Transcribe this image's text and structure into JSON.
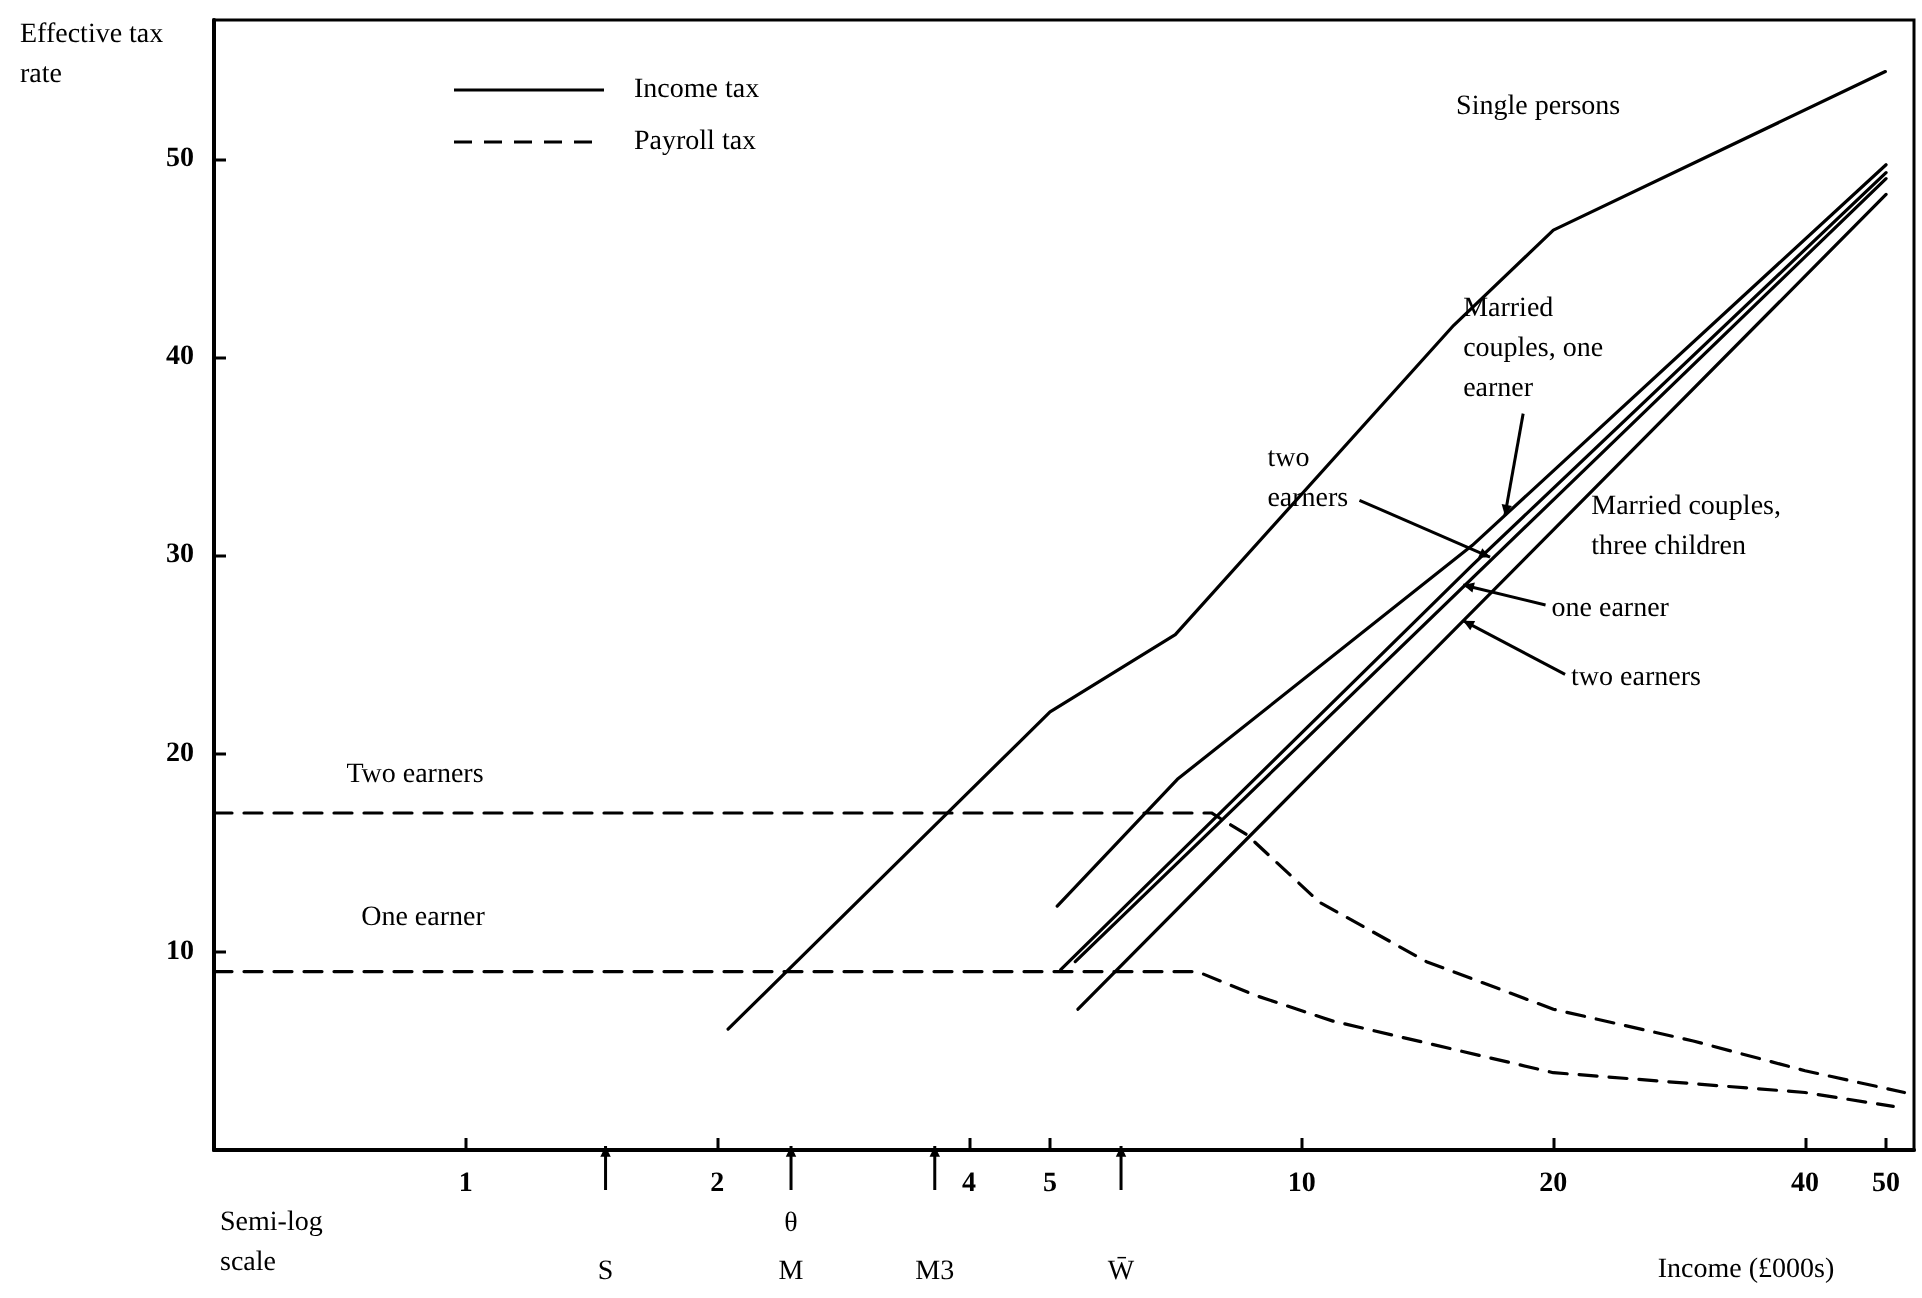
{
  "chart_data": {
    "type": "line",
    "xlabel": "Income (£000s)",
    "ylabel": "Effective tax rate",
    "log": "x",
    "xlim": [
      0.5,
      54
    ],
    "xticks": [
      1,
      2,
      4,
      5,
      10,
      20,
      40,
      50
    ],
    "ylim": [
      0,
      57
    ],
    "yticks": [
      10,
      20,
      30,
      40,
      50
    ],
    "grid": false,
    "marker": "none",
    "legend": "top left",
    "annotations": [
      "Income tax",
      "Payroll tax",
      "Semi-log scale",
      "S",
      "θ",
      "M",
      "M3",
      "W̄",
      {
        "text": "Married couples, one earner",
        "x": 17.5,
        "y": 32.0
      },
      {
        "text": "two earners",
        "x": 16.8,
        "y": 29.9
      },
      "Married couples, three children",
      {
        "text": "one earner",
        "x": 15.6,
        "y": 28.5
      },
      {
        "text": "two earners",
        "x": 15.6,
        "y": 26.7
      }
    ],
    "series": [
      {
        "name": "Single persons",
        "color": "#000000",
        "line_style": "solid",
        "x": [
          2.06,
          5.0,
          7.06,
          15.2,
          20,
          49.9
        ],
        "values": [
          6.1,
          22.1,
          26.0,
          41.6,
          46.4,
          54.4
        ]
      },
      {
        "color": "#000000",
        "line_style": "solid",
        "x": [
          5.1,
          7.1,
          16,
          50
        ],
        "values": [
          12.3,
          18.7,
          30.5,
          49.7
        ]
      },
      {
        "color": "#000000",
        "line_style": "solid",
        "x": [
          5.15,
          16,
          50
        ],
        "values": [
          9.1,
          29.5,
          49.3
        ]
      },
      {
        "color": "#000000",
        "line_style": "solid",
        "x": [
          5.36,
          50
        ],
        "values": [
          9.5,
          49.0
        ]
      },
      {
        "color": "#000000",
        "line_style": "solid",
        "x": [
          5.4,
          50
        ],
        "values": [
          7.1,
          48.2
        ]
      },
      {
        "name": "Two earners",
        "color": "#000000",
        "line_style": "dashed",
        "x": [
          0.5,
          7.8,
          8.6,
          10.5,
          14.1,
          20,
          29.4,
          40,
          52.6
        ],
        "values": [
          17.0,
          17.0,
          15.9,
          12.5,
          9.5,
          7.1,
          5.5,
          4.0,
          2.9
        ]
      },
      {
        "name": "One earner",
        "color": "#000000",
        "line_style": "dashed",
        "x": [
          0.5,
          7.5,
          8.8,
          10.9,
          20,
          40,
          51
        ],
        "values": [
          9.0,
          9.0,
          7.8,
          6.5,
          3.9,
          2.9,
          2.2
        ]
      }
    ]
  }
}
